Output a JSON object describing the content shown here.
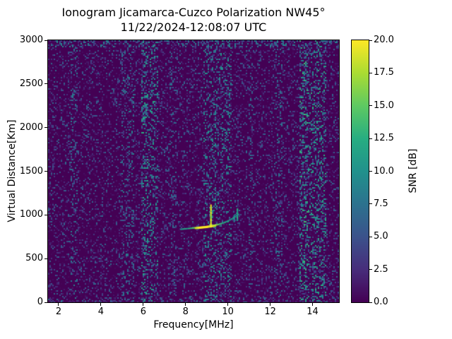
{
  "colors": {
    "figure_background": "#ffffff",
    "axes_color": "#000000",
    "heatmap_floor": "#440154"
  },
  "chart_data": {
    "type": "heatmap",
    "title": "Ionogram Jicamarca-Cuzco Polarization NW45°",
    "subtitle": "11/22/2024-12:08:07 UTC",
    "xlabel": "Frequency[MHz]",
    "ylabel": "Virtual Distance[Km]",
    "colorbar_label": "SNR [dB]",
    "colormap": "viridis",
    "xlim": [
      1.5,
      15.25
    ],
    "ylim": [
      0,
      3000
    ],
    "clim": [
      0,
      20
    ],
    "x_ticks": [
      2,
      4,
      6,
      8,
      10,
      12,
      14
    ],
    "y_ticks": [
      0,
      500,
      1000,
      1500,
      2000,
      2500,
      3000
    ],
    "colorbar_ticks": [
      0,
      2.5,
      5,
      7.5,
      10,
      12.5,
      15,
      17.5,
      20
    ],
    "grid": false,
    "legend": "none",
    "colormap_stops": [
      {
        "t": 0.0,
        "color": "#440154"
      },
      {
        "t": 0.125,
        "color": "#472d7b"
      },
      {
        "t": 0.25,
        "color": "#3b528b"
      },
      {
        "t": 0.375,
        "color": "#2c728e"
      },
      {
        "t": 0.5,
        "color": "#21918c"
      },
      {
        "t": 0.625,
        "color": "#27ad81"
      },
      {
        "t": 0.75,
        "color": "#5ec962"
      },
      {
        "t": 0.875,
        "color": "#aadc32"
      },
      {
        "t": 1.0,
        "color": "#fde725"
      }
    ],
    "noise": {
      "base_density": 0.32,
      "base_snr_max": 7,
      "base_skew": 2.2,
      "band_skew": 1.35
    },
    "interference_bands": [
      {
        "f_min": 5.92,
        "f_max": 6.25,
        "density": 0.5,
        "snr_max": 13
      },
      {
        "f_min": 6.25,
        "f_max": 6.7,
        "density": 0.42,
        "snr_max": 12
      },
      {
        "f_min": 5.0,
        "f_max": 5.6,
        "density": 0.38,
        "snr_max": 9
      },
      {
        "f_min": 8.85,
        "f_max": 9.6,
        "density": 0.42,
        "snr_max": 11
      },
      {
        "f_min": 9.6,
        "f_max": 10.15,
        "density": 0.4,
        "snr_max": 11
      },
      {
        "f_min": 13.35,
        "f_max": 13.75,
        "density": 0.5,
        "snr_max": 14
      },
      {
        "f_min": 13.75,
        "f_max": 14.65,
        "density": 0.45,
        "snr_max": 13
      },
      {
        "f_min": 12.25,
        "f_max": 12.6,
        "density": 0.38,
        "snr_max": 9
      },
      {
        "f_min": 2.55,
        "f_max": 2.9,
        "density": 0.36,
        "snr_max": 9
      },
      {
        "f_min": 7.25,
        "f_max": 7.6,
        "density": 0.36,
        "snr_max": 8
      },
      {
        "f_min": 11.0,
        "f_max": 11.2,
        "density": 0.35,
        "snr_max": 8
      }
    ],
    "edge_bands": [
      {
        "d_min": 2920,
        "d_max": 3000,
        "density": 0.5,
        "snr_max": 10
      },
      {
        "d_min": 0,
        "d_max": 50,
        "density": 0.4,
        "snr_max": 8
      }
    ],
    "echo_trace": [
      [
        7.78,
        836,
        9
      ],
      [
        7.86,
        838,
        11
      ],
      [
        7.94,
        840,
        12
      ],
      [
        8.02,
        842,
        11
      ],
      [
        8.1,
        844,
        10
      ],
      [
        8.18,
        846,
        13
      ],
      [
        8.26,
        848,
        12
      ],
      [
        8.34,
        850,
        14
      ],
      [
        8.42,
        852,
        15
      ],
      [
        8.5,
        854,
        18
      ],
      [
        8.58,
        856,
        19
      ],
      [
        8.66,
        858,
        20
      ],
      [
        8.74,
        860,
        20
      ],
      [
        8.82,
        862,
        20
      ],
      [
        8.9,
        864,
        20
      ],
      [
        8.98,
        866,
        20
      ],
      [
        9.06,
        869,
        20
      ],
      [
        9.14,
        872,
        19
      ],
      [
        9.22,
        875,
        20
      ],
      [
        9.3,
        878,
        19
      ],
      [
        9.38,
        882,
        18
      ],
      [
        9.46,
        886,
        17
      ],
      [
        9.54,
        891,
        15
      ],
      [
        9.62,
        896,
        14
      ],
      [
        9.7,
        902,
        13
      ],
      [
        9.78,
        908,
        12
      ],
      [
        9.86,
        916,
        12
      ],
      [
        9.94,
        924,
        11
      ],
      [
        10.02,
        933,
        11
      ],
      [
        10.1,
        943,
        10
      ],
      [
        10.18,
        954,
        10
      ],
      [
        10.26,
        966,
        11
      ],
      [
        10.34,
        979,
        10
      ],
      [
        10.42,
        992,
        10
      ],
      [
        10.5,
        1005,
        9
      ]
    ],
    "echo_spikes": [
      [
        9.2,
        880,
        1120,
        18
      ],
      [
        10.45,
        955,
        1080,
        11
      ],
      [
        10.3,
        940,
        1000,
        9
      ]
    ]
  }
}
